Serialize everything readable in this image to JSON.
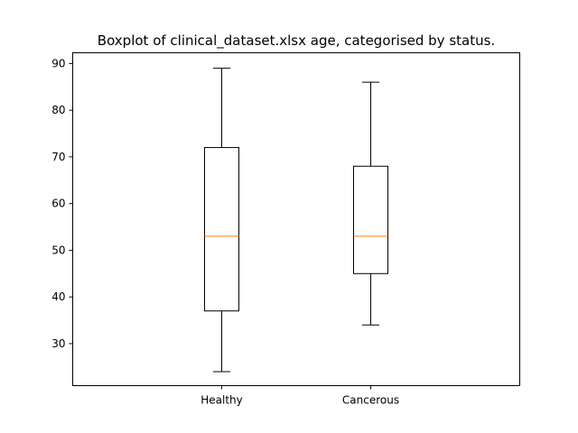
{
  "chart_data": {
    "type": "boxplot",
    "title": "Boxplot of clinical_dataset.xlsx age, categorised by status.",
    "xlabel": "",
    "ylabel": "",
    "categories": [
      "Healthy",
      "Cancerous"
    ],
    "boxes": [
      {
        "category": "Healthy",
        "whisker_low": 24,
        "q1": 37,
        "median": 53,
        "q3": 72,
        "whisker_high": 89
      },
      {
        "category": "Cancerous",
        "whisker_low": 34,
        "q1": 45,
        "median": 53,
        "q3": 68,
        "whisker_high": 86
      }
    ],
    "ylim": [
      21,
      92.3
    ],
    "yticks": [
      30,
      40,
      50,
      60,
      70,
      80,
      90
    ],
    "grid": false,
    "colors": {
      "box": "#000000",
      "median": "#ff7f0e"
    }
  }
}
